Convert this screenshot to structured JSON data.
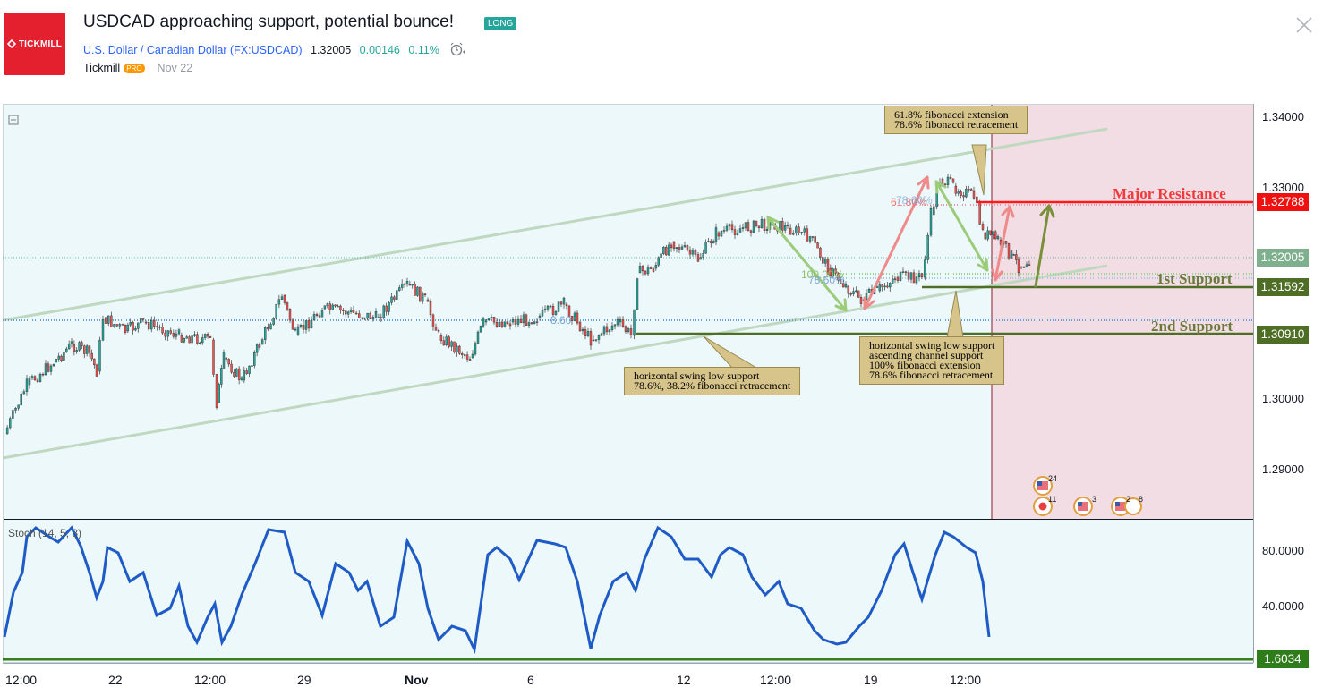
{
  "header": {
    "logo_text": "TICKMILL",
    "title": "USDCAD approaching support, potential bounce!",
    "badge": "LONG",
    "symbol": "U.S. Dollar / Canadian Dollar (FX:USDCAD)",
    "price": "1.32005",
    "change": "0.00146",
    "change_pct": "0.11%",
    "author": "Tickmill",
    "author_badge": "PRO",
    "date": "Nov 22"
  },
  "chart": {
    "price_axis": [
      "1.34000",
      "1.33000",
      "1.30000",
      "1.29000"
    ],
    "indicator_axis": [
      "80.0000",
      "40.0000"
    ],
    "indicator_label": "Stoch (14, 5, 3)",
    "time_axis": [
      "12:00",
      "22",
      "12:00",
      "29",
      "Nov",
      "6",
      "12",
      "12:00",
      "19",
      "12:00"
    ],
    "price_tags": {
      "major_resistance": "1.32788",
      "current": "1.32005",
      "first_support": "1.31592",
      "second_support": "1.30910",
      "stoch": "1.6034"
    },
    "levels": {
      "major_resistance": "Major Resistance",
      "first_support": "1st Support",
      "second_support": "2nd Support"
    },
    "annotations": {
      "top": "61.8% fibonacci extension\n78.6% fibonacci retracement",
      "middle_right": "horizontal swing low support\nascending channel support\n100% fibonacci extension\n78.6% fibonacci retracement",
      "middle_left": "horizontal swing low support\n78.6%, 38.2% fibonacci retracement"
    },
    "fib_labels": {
      "fib_a": "61.80%",
      "fib_b": "78.60%",
      "fib_c": "100.00%",
      "fib_d": "78.60%",
      "fib_e": "8.60"
    },
    "events": [
      "24",
      "11",
      "3",
      "2",
      "8"
    ],
    "colors": {
      "bull": "#26a69a",
      "bear": "#ef5350",
      "resistance": "#ff0000",
      "support": "#5a7a2a",
      "stoch": "#1e5bc6",
      "zone": "#f3dde4",
      "bg": "#edf8fb"
    }
  }
}
